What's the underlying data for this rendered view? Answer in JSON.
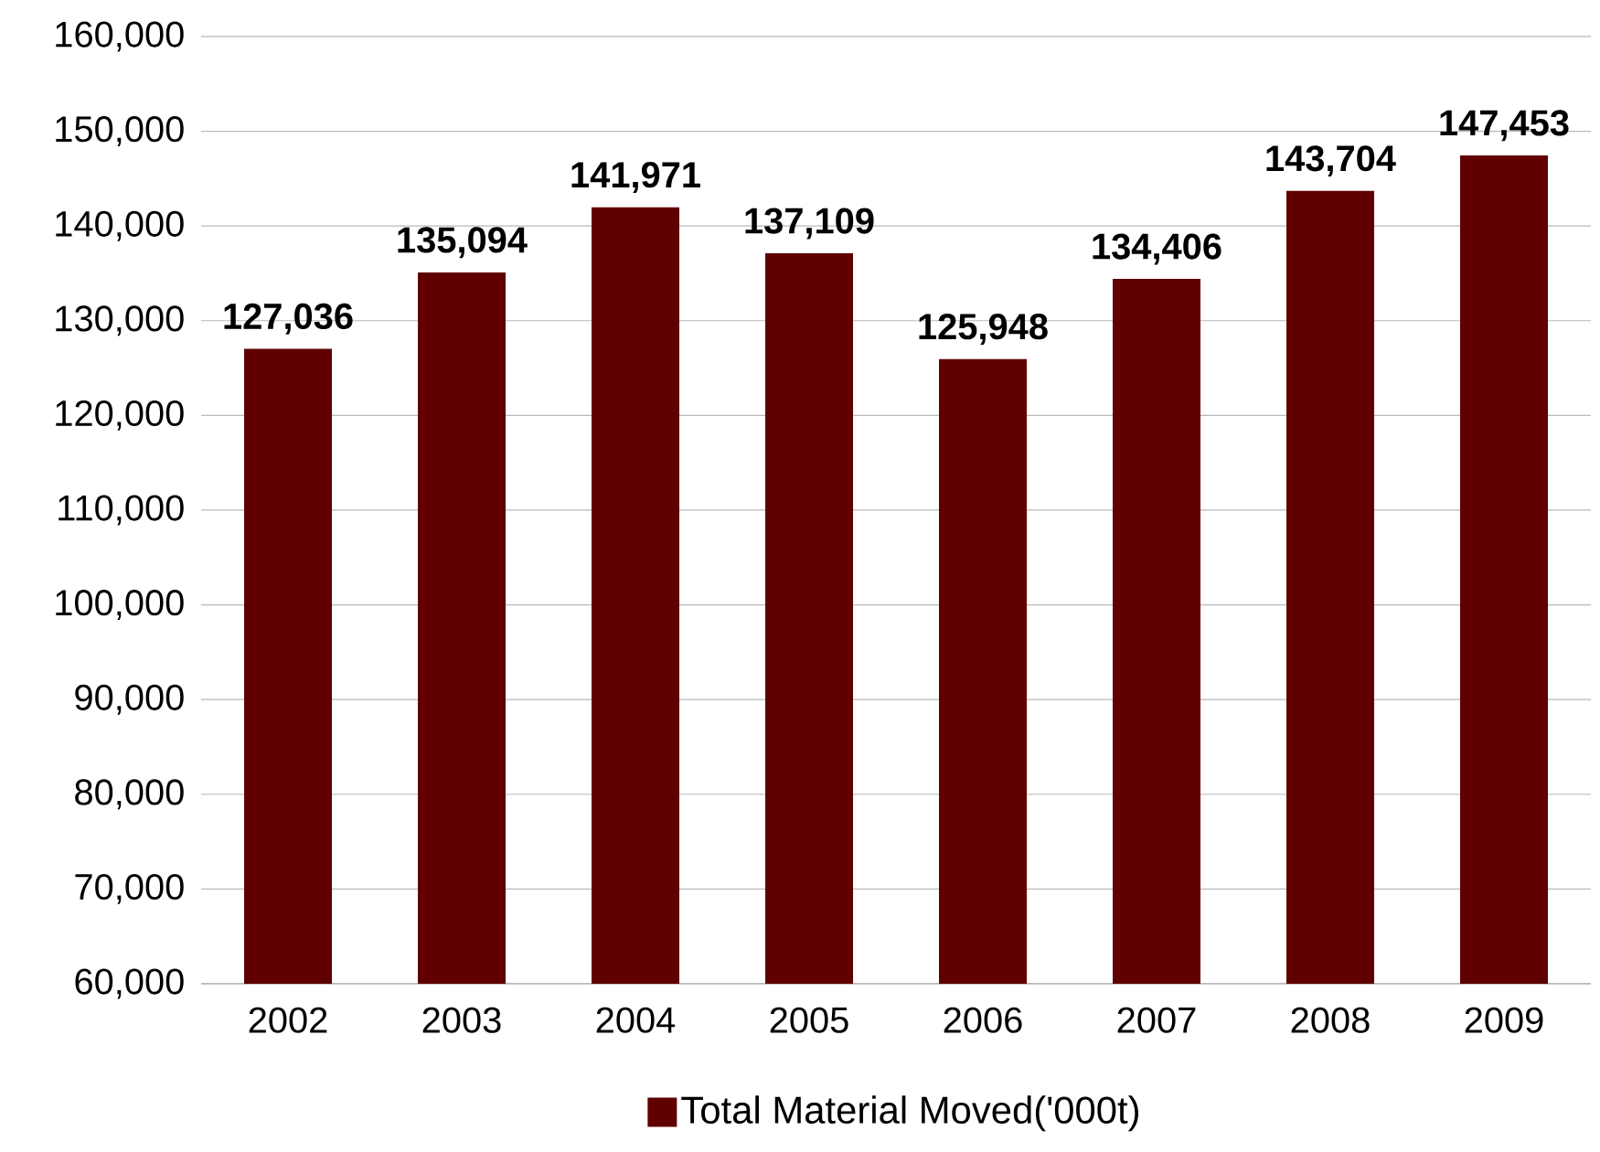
{
  "chart_data": {
    "type": "bar",
    "categories": [
      "2002",
      "2003",
      "2004",
      "2005",
      "2006",
      "2007",
      "2008",
      "2009"
    ],
    "series": [
      {
        "name": "Total Material Moved('000t)",
        "color": "#600000",
        "values": [
          127036,
          135094,
          141971,
          137109,
          125948,
          134406,
          143704,
          147453
        ],
        "value_labels": [
          "127,036",
          "135,094",
          "141,971",
          "137,109",
          "125,948",
          "134,406",
          "143,704",
          "147,453"
        ]
      }
    ],
    "ylim": [
      60000,
      160000
    ],
    "yticks": [
      {
        "value": 60000,
        "label": "60,000"
      },
      {
        "value": 70000,
        "label": "70,000"
      },
      {
        "value": 80000,
        "label": "80,000"
      },
      {
        "value": 90000,
        "label": "90,000"
      },
      {
        "value": 100000,
        "label": "100,000"
      },
      {
        "value": 110000,
        "label": "110,000"
      },
      {
        "value": 120000,
        "label": "120,000"
      },
      {
        "value": 130000,
        "label": "130,000"
      },
      {
        "value": 140000,
        "label": "140,000"
      },
      {
        "value": 150000,
        "label": "150,000"
      },
      {
        "value": 160000,
        "label": "160,000"
      }
    ],
    "grid": "y",
    "legend": "bottom"
  }
}
